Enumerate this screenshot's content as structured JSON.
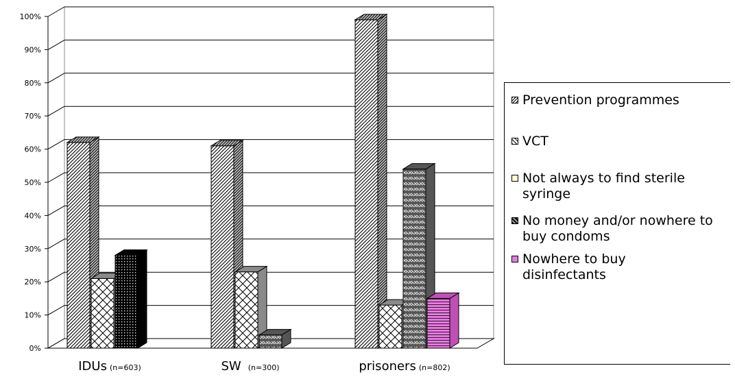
{
  "chart_data": {
    "type": "bar",
    "categories": [
      "IDUs",
      "SW",
      "prisoners"
    ],
    "category_notes": [
      "(n=603)",
      "(n=300)",
      "(n=802)"
    ],
    "yticks": [
      "0%",
      "10%",
      "20%",
      "30%",
      "40%",
      "50%",
      "60%",
      "70%",
      "80%",
      "90%",
      "100%"
    ],
    "ylim": [
      0,
      100
    ],
    "grid": true,
    "legend_position": "right",
    "series": [
      {
        "name": "Prevention programmes",
        "values": [
          62,
          61,
          99
        ],
        "color": "#ffffff",
        "pattern": "diag"
      },
      {
        "name": "VCT",
        "values": [
          21,
          23,
          13
        ],
        "color": "#ffffff",
        "pattern": "cross"
      },
      {
        "name": "Not always to find sterile syringe",
        "values": [
          28,
          null,
          null
        ],
        "color": "#ffffff",
        "pattern": "dots"
      },
      {
        "name": "No money and/or nowhere to buy condoms",
        "values": [
          null,
          4,
          54
        ],
        "color": "#ffffff",
        "pattern": "weave"
      },
      {
        "name": "Nowhere to buy disinfectants",
        "values": [
          null,
          null,
          15
        ],
        "color": "#e879e0",
        "pattern": "hlines"
      }
    ]
  }
}
